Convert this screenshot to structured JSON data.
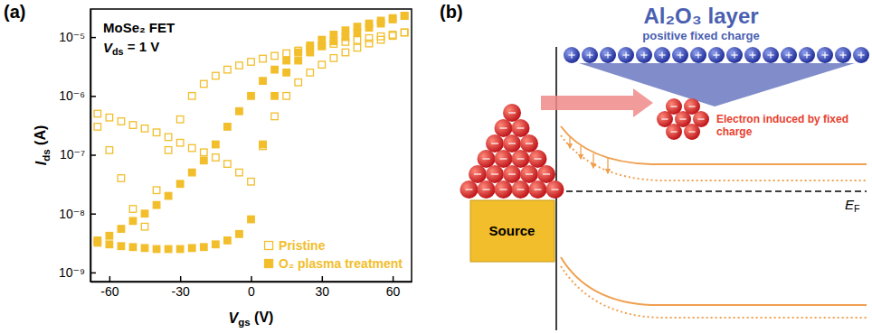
{
  "chart_data": {
    "type": "scatter",
    "panel_label": "(a)",
    "annotations": [
      [
        "MoSe₂ FET"
      ],
      [
        "V",
        "ds",
        " = 1 V"
      ]
    ],
    "x_label": [
      "V",
      "gs",
      " (V)"
    ],
    "y_label": [
      "I",
      "ds",
      " (A)"
    ],
    "log": "y",
    "grid": false,
    "legend": "lower right",
    "xlim": [
      -68,
      68
    ],
    "xticks": [
      -60,
      -30,
      0,
      30,
      60
    ],
    "ylim": [
      7e-10,
      3e-05
    ],
    "yticks": [
      {
        "value": 1e-09,
        "label": "10⁻⁹"
      },
      {
        "value": 1e-08,
        "label": "10⁻⁸"
      },
      {
        "value": 1e-07,
        "label": "10⁻⁷"
      },
      {
        "value": 1e-06,
        "label": "10⁻⁶"
      },
      {
        "value": 1e-05,
        "label": "10⁻⁵"
      }
    ],
    "x": [
      -65,
      -60,
      -55,
      -50,
      -45,
      -40,
      -35,
      -30,
      -25,
      -20,
      -15,
      -10,
      -5,
      0,
      5,
      10,
      15,
      20,
      25,
      30,
      35,
      40,
      45,
      50,
      55,
      60,
      65,
      65,
      60,
      55,
      50,
      45,
      40,
      35,
      30,
      25,
      20,
      15,
      10,
      5,
      0,
      -5,
      -10,
      -15,
      -20,
      -25,
      -30,
      -35,
      -40,
      -45,
      -50,
      -55,
      -60,
      -65
    ],
    "series": [
      {
        "name": "Pristine",
        "color": "#f2be2b",
        "marker": "square-open",
        "values": [
          3e-07,
          1.2e-07,
          4e-08,
          1.2e-08,
          6e-09,
          2.5e-08,
          1.2e-07,
          4e-07,
          1e-06,
          1.6e-06,
          2.2e-06,
          2.8e-06,
          3.3e-06,
          3.8e-06,
          4.3e-06,
          4.8e-06,
          5.3e-06,
          5.9e-06,
          6.5e-06,
          7.1e-06,
          7.7e-06,
          8.3e-06,
          8.9e-06,
          9.6e-06,
          1.03e-05,
          1.1e-05,
          1.2e-05,
          1.2e-05,
          1.05e-05,
          9e-06,
          7.8e-06,
          6.6e-06,
          5.5e-06,
          4.4e-06,
          3.4e-06,
          2.5e-06,
          1.7e-06,
          1e-06,
          4.5e-07,
          1.4e-07,
          3.5e-08,
          5e-08,
          7e-08,
          9e-08,
          1.1e-07,
          1.3e-07,
          1.6e-07,
          2e-07,
          2.4e-07,
          2.8e-07,
          3.2e-07,
          3.7e-07,
          4.3e-07,
          5e-07
        ]
      },
      {
        "name": "O₂ plasma treatment",
        "color": "#f2be2b",
        "marker": "square",
        "values": [
          3.5e-09,
          3e-09,
          2.8e-09,
          2.7e-09,
          2.6e-09,
          2.5e-09,
          2.5e-09,
          2.5e-09,
          2.6e-09,
          2.7e-09,
          3e-09,
          3.5e-09,
          4.5e-09,
          8e-09,
          1.5e-07,
          1e-06,
          2.5e-06,
          4e-06,
          5.5e-06,
          7e-06,
          8.5e-06,
          1e-05,
          1.2e-05,
          1.45e-05,
          1.7e-05,
          2e-05,
          2.3e-05,
          2.3e-05,
          2.1e-05,
          1.9e-05,
          1.7e-05,
          1.5e-05,
          1.3e-05,
          1.1e-05,
          9e-06,
          7.2e-06,
          5.5e-06,
          4e-06,
          2.8e-06,
          1.8e-06,
          1e-06,
          5.5e-07,
          3e-07,
          1.5e-07,
          8e-08,
          5e-08,
          3.2e-08,
          2e-08,
          1.4e-08,
          1e-08,
          7.5e-09,
          5.5e-09,
          4.2e-09,
          3.2e-09
        ]
      }
    ]
  },
  "diagram": {
    "panel_label": "(b)",
    "layer_title": "Al₂O₃ layer",
    "layer_subtitle": "positive fixed charge",
    "electron_label": "Electron induced by fixed charge",
    "contact_label": "Source",
    "fermi_label": [
      "E",
      "F"
    ]
  }
}
